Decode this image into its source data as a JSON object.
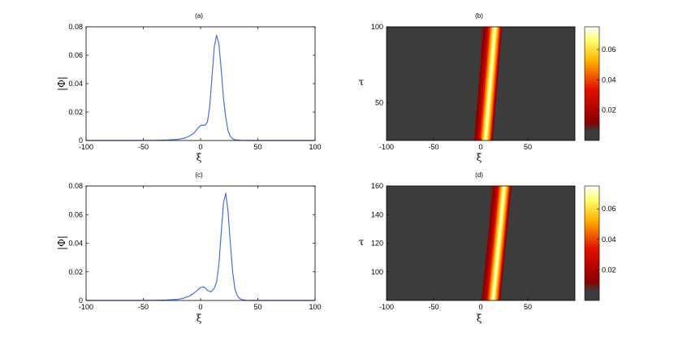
{
  "chart_data": [
    {
      "type": "line",
      "title": "(a)",
      "xlabel": "ξ",
      "ylabel": "|Φ|",
      "xlim": [
        -100,
        100
      ],
      "ylim": [
        0,
        0.08
      ],
      "xticks": [
        "-100",
        "-50",
        "0",
        "50",
        "100"
      ],
      "yticks": [
        "0",
        "0.02",
        "0.04",
        "0.06",
        "0.08"
      ],
      "series": [
        {
          "color": "#4a6fdc",
          "x": [
            -100,
            -60,
            -40,
            -30,
            -20,
            -15,
            -10,
            -6,
            -4,
            -2,
            0,
            2,
            4,
            6,
            8,
            10,
            12,
            14,
            16,
            18,
            20,
            22,
            24,
            26,
            28,
            30,
            35,
            40,
            60,
            100
          ],
          "y": [
            0,
            0,
            0.0001,
            0.0003,
            0.0008,
            0.0015,
            0.003,
            0.005,
            0.007,
            0.009,
            0.0105,
            0.0108,
            0.0108,
            0.013,
            0.024,
            0.045,
            0.066,
            0.074,
            0.068,
            0.05,
            0.03,
            0.016,
            0.007,
            0.003,
            0.0012,
            0.0005,
            0.0001,
            0,
            0,
            0
          ]
        }
      ]
    },
    {
      "type": "heatmap",
      "title": "(b)",
      "xlabel": "ξ",
      "ylabel": "τ",
      "xlim": [
        -100,
        100
      ],
      "ylim": [
        25,
        100
      ],
      "xticks": [
        "-100",
        "-50",
        "0",
        "50"
      ],
      "yticks": [
        "50",
        "100"
      ],
      "colorbar_ticks": [
        "0.02",
        "0.04",
        "0.06"
      ],
      "colorbar_range": [
        0,
        0.075
      ],
      "ridge": {
        "tau_start": 25,
        "tau_end": 100,
        "peak_xi_start": 5,
        "peak_xi_end": 15
      }
    },
    {
      "type": "line",
      "title": "(c)",
      "xlabel": "ξ",
      "ylabel": "|Φ|",
      "xlim": [
        -100,
        100
      ],
      "ylim": [
        0,
        0.08
      ],
      "xticks": [
        "-100",
        "-50",
        "0",
        "50",
        "100"
      ],
      "yticks": [
        "0",
        "0.02",
        "0.04",
        "0.06",
        "0.08"
      ],
      "series": [
        {
          "color": "#4a6fdc",
          "x": [
            -100,
            -60,
            -40,
            -30,
            -20,
            -15,
            -10,
            -6,
            -3,
            0,
            3,
            6,
            9,
            12,
            14,
            16,
            18,
            20,
            22,
            24,
            26,
            28,
            30,
            32,
            34,
            36,
            40,
            45,
            60,
            100
          ],
          "y": [
            0,
            0,
            0.0001,
            0.0003,
            0.0008,
            0.0015,
            0.003,
            0.005,
            0.007,
            0.009,
            0.0095,
            0.007,
            0.006,
            0.0085,
            0.013,
            0.025,
            0.047,
            0.068,
            0.075,
            0.062,
            0.04,
            0.02,
            0.008,
            0.0035,
            0.0015,
            0.0006,
            0.0001,
            0,
            0,
            0
          ]
        }
      ]
    },
    {
      "type": "heatmap",
      "title": "(d)",
      "xlabel": "ξ",
      "ylabel": "τ",
      "xlim": [
        -100,
        100
      ],
      "ylim": [
        80,
        160
      ],
      "xticks": [
        "-100",
        "-50",
        "0",
        "50"
      ],
      "yticks": [
        "100",
        "120",
        "140",
        "160"
      ],
      "colorbar_ticks": [
        "0.02",
        "0.04",
        "0.06"
      ],
      "colorbar_range": [
        0,
        0.075
      ],
      "ridge": {
        "tau_start": 80,
        "tau_end": 160,
        "peak_xi_start": 13,
        "peak_xi_end": 25
      }
    }
  ]
}
